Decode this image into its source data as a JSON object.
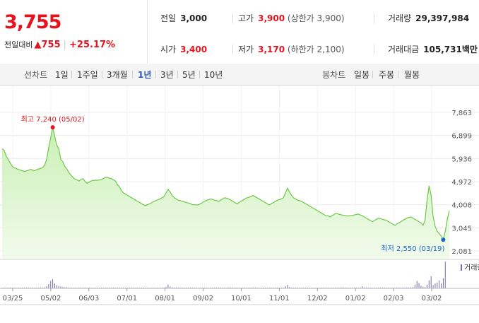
{
  "price": {
    "current": "3,755",
    "change_label": "전일대비",
    "change_arrow": "▲",
    "change": "755",
    "change_rate": "+25.17%"
  },
  "info": {
    "prev_close": {
      "label": "전일",
      "value": "3,000"
    },
    "high": {
      "label": "고가",
      "value": "3,900",
      "note": "(상한가 3,900)"
    },
    "volume": {
      "label": "거래량",
      "value": "29,397,984"
    },
    "open": {
      "label": "시가",
      "value": "3,400"
    },
    "low": {
      "label": "저가",
      "value": "3,170",
      "note": "(하한가 2,100)"
    },
    "amount": {
      "label": "거래대금",
      "value": "105,731",
      "unit": "백만"
    }
  },
  "tabs": {
    "line_label": "선차트",
    "line_periods": [
      "1일",
      "1주일",
      "3개월",
      "1년",
      "3년",
      "5년",
      "10년"
    ],
    "active": "1년",
    "candle_label": "봉차트",
    "candle_periods": [
      "일봉",
      "주봉",
      "월봉"
    ]
  },
  "colors": {
    "up": "#e4141e",
    "line": "#6fc84a",
    "fill_top": "#c9efb4",
    "fill_bottom": "#f2fbec",
    "volume": "#7b68b3",
    "low_marker": "#1a66cc",
    "active_tab": "#2a58b4"
  },
  "chart_data": {
    "type": "area",
    "yticks": [
      "7,863",
      "6,899",
      "5,936",
      "4,972",
      "4,008",
      "3,045",
      "2,081"
    ],
    "ytick_values": [
      7863,
      6899,
      5936,
      4972,
      4008,
      3045,
      2081
    ],
    "ylim": [
      2081,
      7863
    ],
    "xticks": [
      "03/25",
      "05/02",
      "06/03",
      "07/01",
      "08/01",
      "09/02",
      "10/01",
      "11/01",
      "12/02",
      "01/02",
      "02/03",
      "03/02"
    ],
    "high_annotation": "최고 7,240 (05/02)",
    "low_annotation": "최저 2,550 (03/19)",
    "volume_legend": "거래량",
    "grid": true,
    "series": [
      {
        "values": [
          6350,
          6280,
          6050,
          5900,
          5750,
          5620,
          5550,
          5520,
          5480,
          5460,
          5430,
          5400,
          5420,
          5450,
          5480,
          5460,
          5430,
          5470,
          5500,
          5520,
          5560,
          5650,
          5900,
          6400,
          6800,
          7240,
          6850,
          6500,
          6350,
          5900,
          5800,
          5600,
          5500,
          5350,
          5250,
          5150,
          5080,
          5050,
          5000,
          5060,
          5100,
          4980,
          4900,
          4950,
          5000,
          5020,
          5030,
          5030,
          5040,
          5060,
          5100,
          5150,
          5150,
          5120,
          5100,
          5050,
          5000,
          4850,
          4750,
          4600,
          4500,
          4450,
          4400,
          4350,
          4300,
          4250,
          4200,
          4150,
          4100,
          4050,
          4000,
          3980,
          4020,
          4050,
          4100,
          4150,
          4180,
          4220,
          4250,
          4300,
          4350,
          4500,
          4650,
          4550,
          4400,
          4300,
          4250,
          4200,
          4180,
          4150,
          4130,
          4100,
          4080,
          4050,
          4020,
          4000,
          4000,
          4000,
          4050,
          4100,
          4150,
          4200,
          4220,
          4250,
          4230,
          4200,
          4180,
          4150,
          4200,
          4250,
          4300,
          4280,
          4250,
          4200,
          4150,
          4100,
          4050,
          4100,
          4150,
          4200,
          4250,
          4300,
          4320,
          4350,
          4400,
          4350,
          4300,
          4250,
          4200,
          4150,
          4100,
          4050,
          4000,
          4050,
          4100,
          4150,
          4200,
          4220,
          4250,
          4300,
          4500,
          4700,
          4550,
          4400,
          4300,
          4250,
          4200,
          4180,
          4150,
          4100,
          4050,
          4000,
          3950,
          3900,
          3850,
          3800,
          3750,
          3700,
          3650,
          3600,
          3550,
          3550,
          3500,
          3550,
          3600,
          3650,
          3620,
          3600,
          3580,
          3560,
          3550,
          3540,
          3550,
          3560,
          3580,
          3600,
          3620,
          3580,
          3550,
          3500,
          3450,
          3400,
          3350,
          3300,
          3350,
          3400,
          3450,
          3420,
          3400,
          3380,
          3350,
          3300,
          3250,
          3200,
          3150,
          3200,
          3250,
          3300,
          3350,
          3400,
          3450,
          3480,
          3500,
          3450,
          3400,
          3350,
          3300,
          3250,
          3150,
          3350,
          4200,
          4800,
          4400,
          3500,
          3100,
          2900,
          2800,
          2700,
          2550,
          2900,
          3400,
          3755
        ]
      },
      {
        "name": "거래량",
        "values": [
          2,
          1,
          2,
          1,
          1,
          2,
          1,
          1,
          1,
          2,
          1,
          1,
          1,
          1,
          2,
          1,
          1,
          1,
          1,
          2,
          2,
          4,
          8,
          16,
          28,
          34,
          18,
          12,
          9,
          7,
          5,
          4,
          4,
          3,
          3,
          2,
          2,
          2,
          2,
          2,
          2,
          2,
          2,
          2,
          2,
          2,
          2,
          1,
          2,
          2,
          2,
          2,
          1,
          2,
          2,
          2,
          2,
          3,
          3,
          3,
          2,
          2,
          2,
          2,
          2,
          2,
          2,
          2,
          2,
          2,
          2,
          2,
          2,
          2,
          2,
          2,
          2,
          2,
          2,
          2,
          3,
          5,
          14,
          6,
          4,
          3,
          3,
          2,
          2,
          2,
          2,
          2,
          2,
          2,
          2,
          2,
          2,
          2,
          2,
          2,
          2,
          2,
          2,
          2,
          2,
          2,
          2,
          2,
          2,
          3,
          3,
          2,
          2,
          2,
          2,
          2,
          2,
          2,
          2,
          2,
          2,
          2,
          2,
          2,
          3,
          3,
          2,
          2,
          2,
          2,
          2,
          2,
          2,
          2,
          2,
          2,
          2,
          2,
          2,
          3,
          8,
          13,
          5,
          3,
          2,
          2,
          2,
          2,
          2,
          2,
          2,
          2,
          2,
          2,
          2,
          2,
          2,
          2,
          2,
          2,
          2,
          2,
          2,
          2,
          2,
          2,
          2,
          2,
          2,
          2,
          2,
          2,
          2,
          2,
          2,
          2,
          2,
          3,
          8,
          4,
          2,
          2,
          2,
          2,
          2,
          2,
          2,
          2,
          2,
          2,
          2,
          2,
          2,
          2,
          2,
          3,
          3,
          3,
          3,
          3,
          3,
          3,
          4,
          5,
          14,
          28,
          20,
          10,
          6,
          5,
          14,
          30,
          45,
          12,
          18,
          22,
          30,
          18,
          38,
          100
        ]
      }
    ]
  }
}
